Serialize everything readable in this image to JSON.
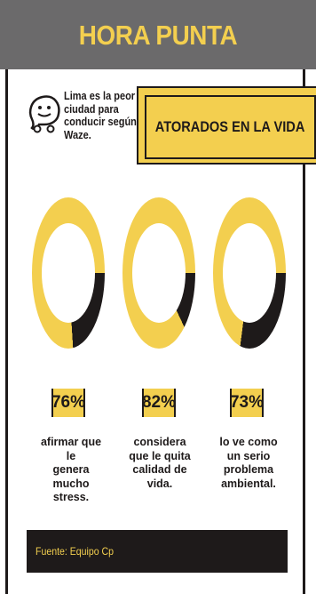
{
  "header": {
    "title": "HORA PUNTA"
  },
  "intro": {
    "text": "Lima es la peor ciudad para conducir según Waze.",
    "icon": "waze-icon"
  },
  "banner": {
    "title": "ATORADOS EN LA VIDA"
  },
  "stats": [
    {
      "percent": "76%",
      "value": 76,
      "caption": [
        "afirmar que le",
        "genera mucho",
        "stress."
      ]
    },
    {
      "percent": "82%",
      "value": 82,
      "caption": [
        "considera",
        "que le quita",
        "calidad de vida."
      ]
    },
    {
      "percent": "73%",
      "value": 73,
      "caption": [
        "lo ve como",
        "un serio",
        "problema",
        "ambiental."
      ]
    }
  ],
  "footer": {
    "source": "Fuente: Equipo Cp"
  },
  "colors": {
    "accent": "#f3cf4f",
    "dark": "#1e1a1a",
    "header_bg": "#6b6a6b"
  }
}
